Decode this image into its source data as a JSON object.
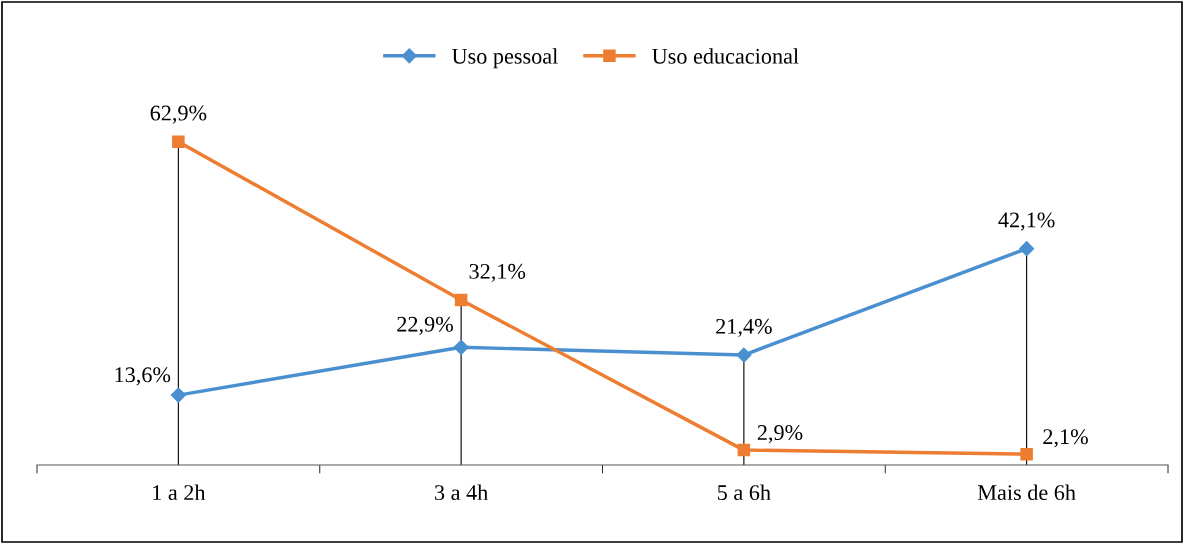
{
  "chart_data": {
    "type": "line",
    "categories": [
      "1 a 2h",
      "3 a 4h",
      "5 a 6h",
      "Mais de 6h"
    ],
    "series": [
      {
        "name": "Uso pessoal",
        "color": "#4a90d0",
        "marker": "diamond",
        "values": [
          13.6,
          22.9,
          21.4,
          42.1
        ],
        "value_labels": [
          "13,6%",
          "22,9%",
          "21,4%",
          "42,1%"
        ]
      },
      {
        "name": "Uso educacional",
        "color": "#ed7d31",
        "marker": "square",
        "values": [
          62.9,
          32.1,
          2.9,
          2.1
        ],
        "value_labels": [
          "62,9%",
          "32,1%",
          "2,9%",
          "2,1%"
        ]
      }
    ],
    "legend": "top",
    "tick_labels": "x"
  }
}
